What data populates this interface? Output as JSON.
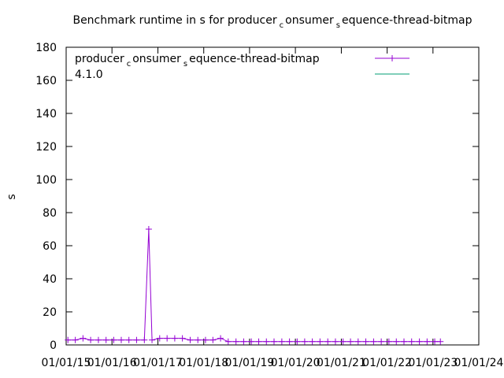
{
  "chart_data": {
    "type": "line",
    "title": [
      "Benchmark runtime in s for producer",
      "c",
      "onsumer",
      "s",
      "equence-thread-bitmap"
    ],
    "y_label": "s",
    "xlim": [
      "2015-01-01",
      "2024-01-01"
    ],
    "xticks": [
      {
        "value": "2015-01-01",
        "label": "01/01/15"
      },
      {
        "value": "2016-01-01",
        "label": "01/01/16"
      },
      {
        "value": "2017-01-01",
        "label": "01/01/17"
      },
      {
        "value": "2018-01-01",
        "label": "01/01/18"
      },
      {
        "value": "2019-01-01",
        "label": "01/01/19"
      },
      {
        "value": "2020-01-01",
        "label": "01/01/20"
      },
      {
        "value": "2021-01-01",
        "label": "01/01/21"
      },
      {
        "value": "2022-01-01",
        "label": "01/01/22"
      },
      {
        "value": "2023-01-01",
        "label": "01/01/23"
      },
      {
        "value": "2024-01-01",
        "label": "01/01/24"
      }
    ],
    "ylim": [
      0,
      180
    ],
    "yticks": [
      0,
      20,
      40,
      60,
      80,
      100,
      120,
      140,
      160,
      180
    ],
    "legend": "top-left",
    "x": [
      "2015-01-15",
      "2015-03-15",
      "2015-05-15",
      "2015-07-15",
      "2015-09-15",
      "2015-11-15",
      "2016-01-15",
      "2016-03-15",
      "2016-05-15",
      "2016-07-15",
      "2016-09-15",
      "2016-10-20",
      "2016-11-15",
      "2017-01-15",
      "2017-03-15",
      "2017-05-15",
      "2017-07-15",
      "2017-09-15",
      "2017-11-15",
      "2018-01-15",
      "2018-03-15",
      "2018-05-15",
      "2018-07-15",
      "2018-09-15",
      "2018-11-15",
      "2019-01-15",
      "2019-03-15",
      "2019-05-15",
      "2019-07-15",
      "2019-09-15",
      "2019-11-15",
      "2020-01-15",
      "2020-03-15",
      "2020-05-15",
      "2020-07-15",
      "2020-09-15",
      "2020-11-15",
      "2021-01-15",
      "2021-03-15",
      "2021-05-15",
      "2021-07-15",
      "2021-09-15",
      "2021-11-15",
      "2022-01-15",
      "2022-03-15",
      "2022-05-15",
      "2022-07-15",
      "2022-09-15",
      "2022-11-15",
      "2023-01-15",
      "2023-03-01"
    ],
    "series": [
      {
        "name": [
          "producer",
          "c",
          "onsumer",
          "s",
          "equence-thread-bitmap"
        ],
        "color": "#9400d3",
        "values": [
          3,
          3,
          4,
          3,
          3,
          3,
          3,
          3,
          3,
          3,
          3,
          70,
          3,
          4,
          4,
          4,
          4,
          3,
          3,
          3,
          3,
          4,
          2,
          2,
          2,
          2,
          2,
          2,
          2,
          2,
          2,
          2,
          2,
          2,
          2,
          2,
          2,
          2,
          2,
          2,
          2,
          2,
          2,
          2,
          2,
          2,
          2,
          2,
          2,
          2,
          2
        ]
      },
      {
        "name": [
          "4.1.0"
        ],
        "color": "#009e73",
        "values": [
          null,
          null,
          null,
          null,
          null,
          null,
          null,
          null,
          null,
          null,
          null,
          null,
          null,
          null,
          null,
          null,
          null,
          null,
          null,
          null,
          null,
          null,
          null,
          null,
          null,
          null,
          null,
          null,
          null,
          null,
          null,
          null,
          null,
          null,
          null,
          null,
          null,
          null,
          null,
          null,
          null,
          null,
          null,
          null,
          null,
          null,
          null,
          null,
          null,
          null,
          null
        ]
      }
    ]
  }
}
